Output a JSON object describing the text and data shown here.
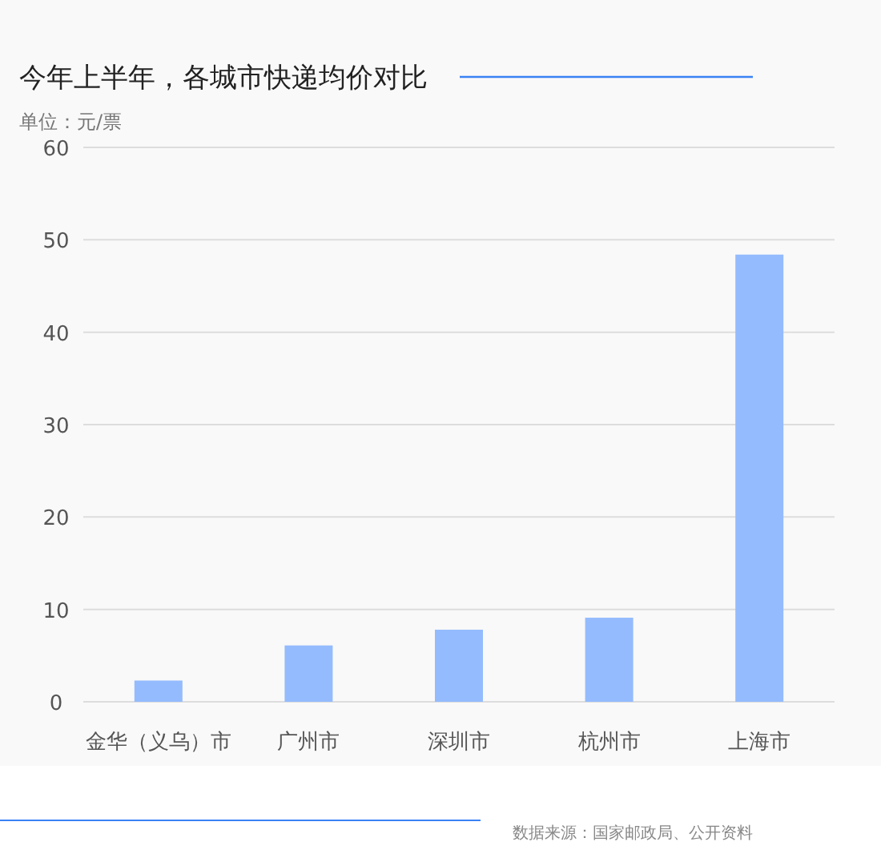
{
  "chart_data": {
    "type": "bar",
    "title": "今年上半年，各城市快递均价对比",
    "ylabel": "单位：元/票",
    "categories": [
      "金华（义乌）市",
      "广州市",
      "深圳市",
      "杭州市",
      "上海市"
    ],
    "values": [
      2.3,
      6.1,
      7.8,
      9.1,
      48.4
    ],
    "color": "#94bbfd",
    "ylim": [
      0,
      60
    ],
    "yticks": [
      0,
      10,
      20,
      30,
      40,
      50,
      60
    ],
    "grid": "y",
    "annotations": [
      "数据来源：国家邮政局、公开资料"
    ]
  }
}
